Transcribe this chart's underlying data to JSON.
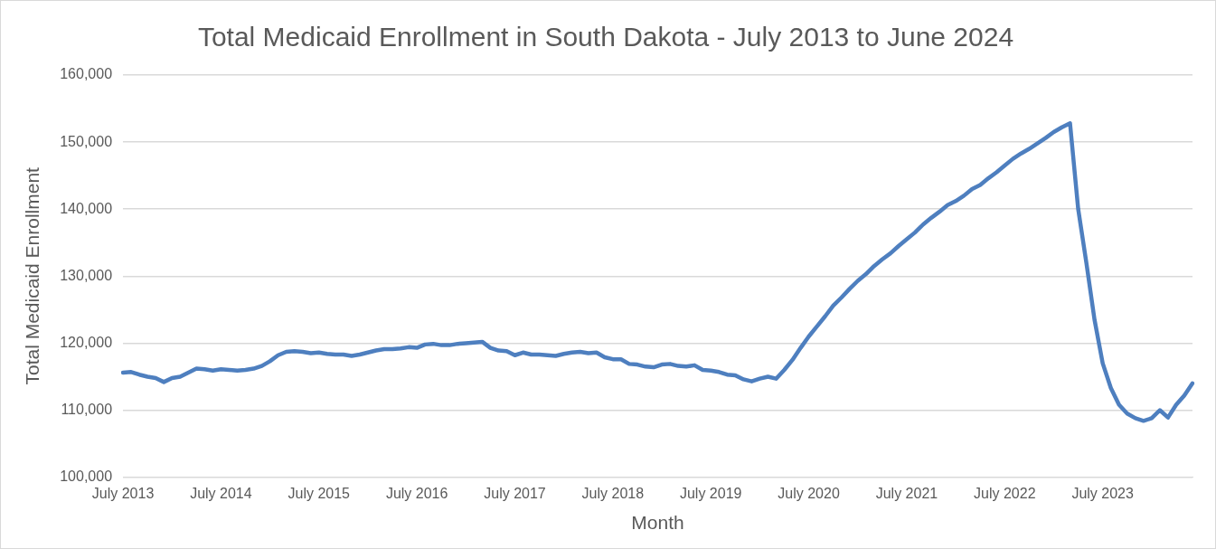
{
  "chart_data": {
    "type": "line",
    "title": "Total Medicaid Enrollment in South Dakota - July 2013 to June 2024",
    "xlabel": "Month",
    "ylabel": "Total Medicaid Enrollment",
    "categories": [
      "July 2013",
      null,
      null,
      null,
      null,
      null,
      null,
      null,
      null,
      null,
      null,
      null,
      "July 2014",
      null,
      null,
      null,
      null,
      null,
      null,
      null,
      null,
      null,
      null,
      null,
      "July 2015",
      null,
      null,
      null,
      null,
      null,
      null,
      null,
      null,
      null,
      null,
      null,
      "July 2016",
      null,
      null,
      null,
      null,
      null,
      null,
      null,
      null,
      null,
      null,
      null,
      "July 2017",
      null,
      null,
      null,
      null,
      null,
      null,
      null,
      null,
      null,
      null,
      null,
      "July 2018",
      null,
      null,
      null,
      null,
      null,
      null,
      null,
      null,
      null,
      null,
      null,
      "July 2019",
      null,
      null,
      null,
      null,
      null,
      null,
      null,
      null,
      null,
      null,
      null,
      "July 2020",
      null,
      null,
      null,
      null,
      null,
      null,
      null,
      null,
      null,
      null,
      null,
      "July 2021",
      null,
      null,
      null,
      null,
      null,
      null,
      null,
      null,
      null,
      null,
      null,
      "July 2022",
      null,
      null,
      null,
      null,
      null,
      null,
      null,
      null,
      null,
      null,
      null,
      "July 2023",
      null,
      null,
      null,
      null,
      null,
      null,
      null,
      null,
      null,
      null,
      null
    ],
    "series": [
      {
        "color": "#4e7fbf",
        "values": [
          115600,
          115700,
          115300,
          115000,
          114800,
          114200,
          114800,
          115000,
          115600,
          116200,
          116100,
          115900,
          116100,
          116000,
          115900,
          116000,
          116200,
          116600,
          117300,
          118200,
          118700,
          118800,
          118700,
          118500,
          118600,
          118400,
          118300,
          118300,
          118100,
          118300,
          118600,
          118900,
          119100,
          119100,
          119200,
          119400,
          119300,
          119800,
          119900,
          119700,
          119700,
          119900,
          120000,
          120100,
          120200,
          119300,
          118900,
          118800,
          118200,
          118600,
          118300,
          118300,
          118200,
          118100,
          118400,
          118600,
          118700,
          118500,
          118600,
          117900,
          117600,
          117600,
          116900,
          116800,
          116500,
          116400,
          116800,
          116900,
          116600,
          116500,
          116700,
          116000,
          115900,
          115700,
          115300,
          115200,
          114600,
          114300,
          114700,
          115000,
          114700,
          116000,
          117500,
          119300,
          121000,
          122500,
          124000,
          125600,
          126800,
          128100,
          129300,
          130300,
          131500,
          132500,
          133400,
          134500,
          135500,
          136500,
          137700,
          138700,
          139600,
          140600,
          141200,
          142000,
          143000,
          143600,
          144600,
          145500,
          146500,
          147500,
          148300,
          149000,
          149800,
          150600,
          151500,
          152200,
          152800,
          140000,
          132000,
          123500,
          117000,
          113300,
          110800,
          109500,
          108800,
          108400,
          108800,
          110000,
          108900,
          110800,
          112200,
          114000
        ]
      }
    ],
    "ylim": [
      100000,
      160000
    ],
    "yticks": [
      {
        "value": 100000,
        "label": "100,000"
      },
      {
        "value": 110000,
        "label": "110,000"
      },
      {
        "value": 120000,
        "label": "120,000"
      },
      {
        "value": 130000,
        "label": "130,000"
      },
      {
        "value": 140000,
        "label": "140,000"
      },
      {
        "value": 150000,
        "label": "150,000"
      },
      {
        "value": 160000,
        "label": "160,000"
      }
    ],
    "grid": "y",
    "legend": false,
    "marker": "none",
    "line_style": "solid"
  }
}
